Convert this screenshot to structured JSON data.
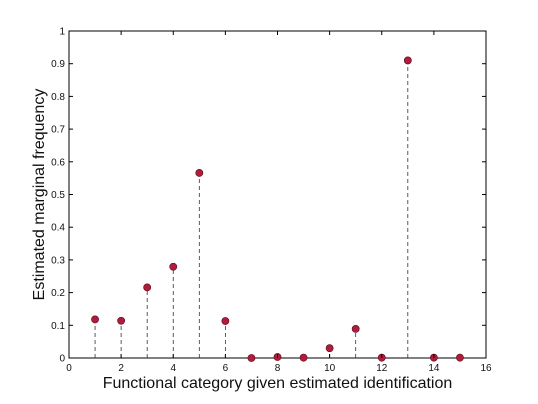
{
  "chart_data": {
    "type": "scatter",
    "style": "stem",
    "title": "",
    "xlabel": "Functional category given estimated identification",
    "ylabel": "Estimated marginal frequency",
    "xlim": [
      0,
      16
    ],
    "ylim": [
      0,
      1
    ],
    "x_ticks": [
      0,
      2,
      4,
      6,
      8,
      10,
      12,
      14,
      16
    ],
    "y_ticks": [
      0,
      0.1,
      0.2,
      0.3,
      0.4,
      0.5,
      0.6,
      0.7,
      0.8,
      0.9,
      1
    ],
    "grid": false,
    "legend": "none",
    "series": [
      {
        "x": [
          1,
          2,
          3,
          4,
          5,
          6,
          7,
          8,
          9,
          10,
          11,
          12,
          13,
          14,
          15
        ],
        "y": [
          0.118,
          0.114,
          0.216,
          0.279,
          0.566,
          0.113,
          0.0,
          0.003,
          0.001,
          0.03,
          0.089,
          0.001,
          0.91,
          0.001,
          0.001
        ],
        "color": "#b01c3c",
        "marker": "circle",
        "stem_style": "dashed"
      }
    ]
  }
}
